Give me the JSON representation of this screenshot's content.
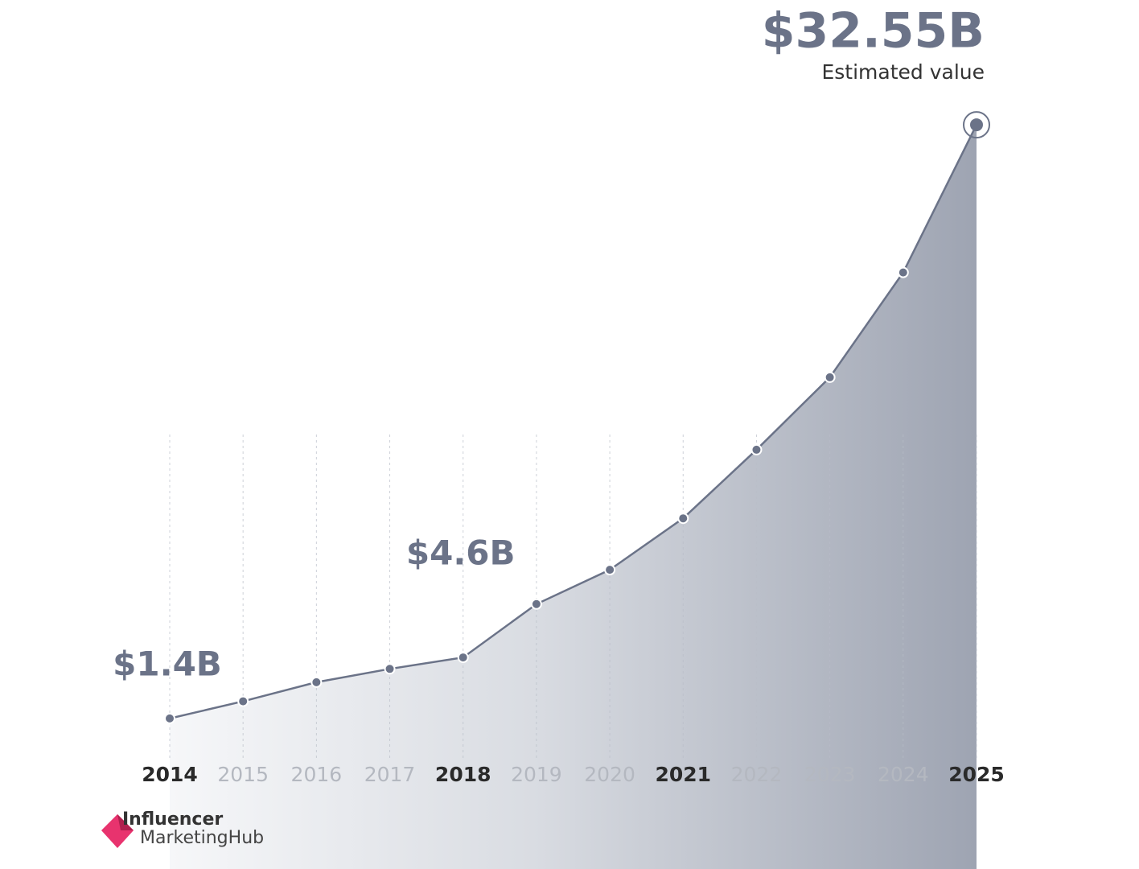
{
  "chart_data": {
    "type": "line",
    "categories": [
      "2014",
      "2015",
      "2016",
      "2017",
      "2018",
      "2019",
      "2020",
      "2021",
      "2022",
      "2023",
      "2024",
      "2025"
    ],
    "values": [
      1.4,
      2.3,
      3.3,
      4.0,
      4.6,
      7.4,
      9.2,
      11.9,
      15.5,
      19.3,
      24.8,
      32.55
    ],
    "value_labels": [
      "$1.4B",
      null,
      null,
      null,
      "$4.6B",
      null,
      null,
      null,
      null,
      null,
      null,
      "$32.55B"
    ],
    "annotation": "Estimated value",
    "bold_ticks": [
      0,
      4,
      7,
      11
    ],
    "color": "#6b7388",
    "ylim": [
      -6.5,
      38
    ],
    "grid": true
  },
  "logo": {
    "line1": "Influencer",
    "line2": "MarketingHub"
  }
}
